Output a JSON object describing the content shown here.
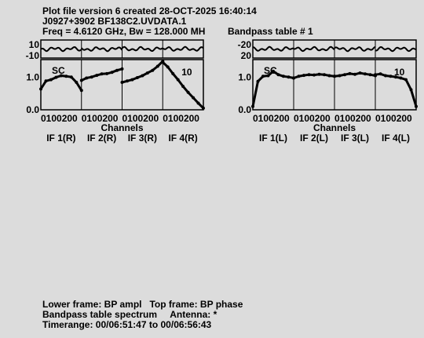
{
  "header": {
    "line1": "Plot file version 6  created 28-OCT-2025 16:40:14",
    "line2": "J0927+3902   BF138C2.UVDATA.1",
    "line3": "Freq = 4.6120 GHz, Bw = 128.000 MH",
    "table_label": "Bandpass table # 1"
  },
  "footer": {
    "line1": "Lower frame: BP ampl   Top frame: BP phase",
    "line2": "Bandpass table spectrum     Antenna: *",
    "line3": "Timerange: 00/06:51:47 to 00/06:56:43"
  },
  "colors": {
    "background": "#dcdcdc",
    "trace": "#000000"
  },
  "chart_data": [
    {
      "type": "line",
      "polarization": "R",
      "xlabel": "Channels",
      "x_ticks": [
        "0",
        "100",
        "200"
      ],
      "if_labels": [
        "IF 1(R)",
        "IF 2(R)",
        "IF 3(R)",
        "IF 4(R)"
      ],
      "phase_panel": {
        "y_ticks": [
          "10",
          "-10"
        ],
        "ylim": [
          -15,
          15
        ]
      },
      "amp_panel": {
        "y_ticks": [
          "1.0",
          "0.0"
        ],
        "ylim": [
          0,
          1.5
        ],
        "annotations": [
          "SC",
          "10"
        ],
        "series": [
          {
            "if": 1,
            "channels": [
              0,
              32,
              64,
              96,
              128,
              160,
              192,
              224,
              256
            ],
            "values": [
              0.62,
              0.86,
              0.9,
              0.97,
              1.02,
              1.0,
              0.98,
              0.82,
              0.58
            ]
          },
          {
            "if": 2,
            "channels": [
              0,
              32,
              64,
              96,
              128,
              160,
              192,
              224,
              256
            ],
            "values": [
              0.88,
              0.95,
              0.98,
              1.03,
              1.07,
              1.08,
              1.12,
              1.18,
              1.22
            ]
          },
          {
            "if": 3,
            "channels": [
              0,
              32,
              64,
              96,
              128,
              160,
              192,
              224,
              256
            ],
            "values": [
              0.82,
              0.86,
              0.9,
              0.96,
              1.02,
              1.1,
              1.18,
              1.3,
              1.45
            ]
          },
          {
            "if": 4,
            "channels": [
              0,
              32,
              64,
              96,
              128,
              160,
              192,
              224,
              256
            ],
            "values": [
              1.42,
              1.28,
              1.08,
              0.9,
              0.7,
              0.52,
              0.36,
              0.2,
              0.05
            ]
          }
        ]
      }
    },
    {
      "type": "line",
      "polarization": "L",
      "xlabel": "Channels",
      "x_ticks": [
        "0",
        "100",
        "200"
      ],
      "if_labels": [
        "IF 1(L)",
        "IF 2(L)",
        "IF 3(L)",
        "IF 4(L)"
      ],
      "phase_panel": {
        "y_ticks": [
          "-20",
          "20"
        ],
        "ylim": [
          -30,
          30
        ]
      },
      "amp_panel": {
        "y_ticks": [
          "1.0",
          "0.0"
        ],
        "ylim": [
          0,
          1.5
        ],
        "annotations": [
          "SC",
          "10"
        ],
        "series": [
          {
            "if": 1,
            "channels": [
              0,
              32,
              64,
              96,
              128,
              160,
              192,
              224,
              256
            ],
            "values": [
              0.1,
              0.85,
              1.0,
              1.02,
              1.15,
              1.05,
              1.0,
              0.98,
              0.95
            ]
          },
          {
            "if": 2,
            "channels": [
              0,
              32,
              64,
              96,
              128,
              160,
              192,
              224,
              256
            ],
            "values": [
              0.95,
              1.0,
              1.03,
              1.05,
              1.04,
              1.06,
              1.05,
              1.02,
              1.0
            ]
          },
          {
            "if": 3,
            "channels": [
              0,
              32,
              64,
              96,
              128,
              160,
              192,
              224,
              256
            ],
            "values": [
              1.0,
              1.02,
              1.05,
              1.08,
              1.06,
              1.1,
              1.07,
              1.05,
              1.02
            ]
          },
          {
            "if": 4,
            "channels": [
              0,
              32,
              64,
              96,
              128,
              160,
              192,
              224,
              256
            ],
            "values": [
              1.05,
              1.07,
              1.02,
              1.0,
              0.98,
              0.95,
              0.9,
              0.6,
              0.1
            ]
          }
        ]
      }
    }
  ]
}
